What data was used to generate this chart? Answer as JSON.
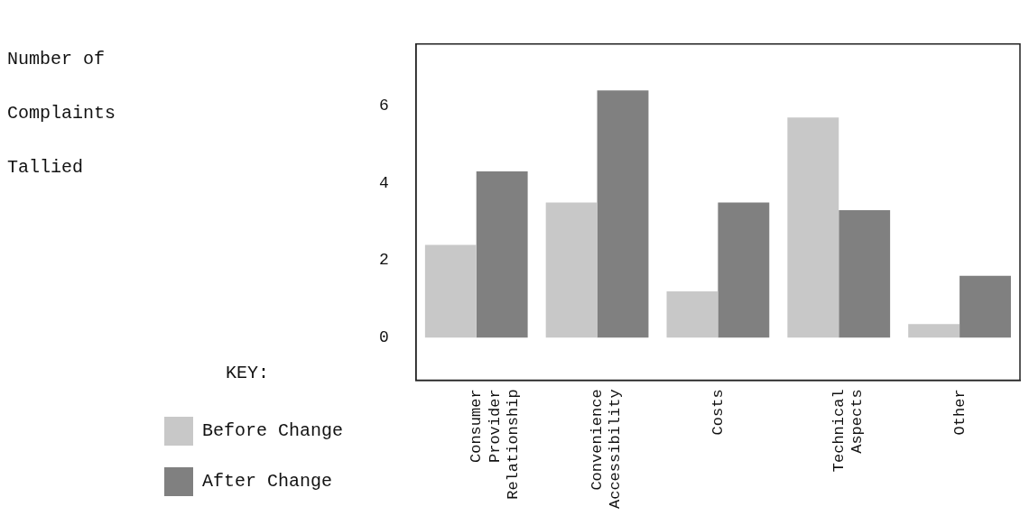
{
  "chart_data": {
    "type": "bar",
    "ylabel": "Number of Complaints Tallied",
    "legend_title": "KEY:",
    "categories": [
      "Consumer Provider Relationship",
      "Convenience Accessibility",
      "Costs",
      "Technical Aspects",
      "Other"
    ],
    "series": [
      {
        "name": "Before Change",
        "color": "#c8c8c8",
        "values": [
          2.4,
          3.5,
          1.2,
          5.7,
          0.35
        ]
      },
      {
        "name": "After Change",
        "color": "#808080",
        "values": [
          4.3,
          6.4,
          3.5,
          3.3,
          1.6
        ]
      }
    ],
    "ylim": [
      -1.1,
      7.6
    ],
    "yticks": [
      0,
      2,
      4,
      6
    ],
    "grid": false,
    "legend": "left"
  }
}
